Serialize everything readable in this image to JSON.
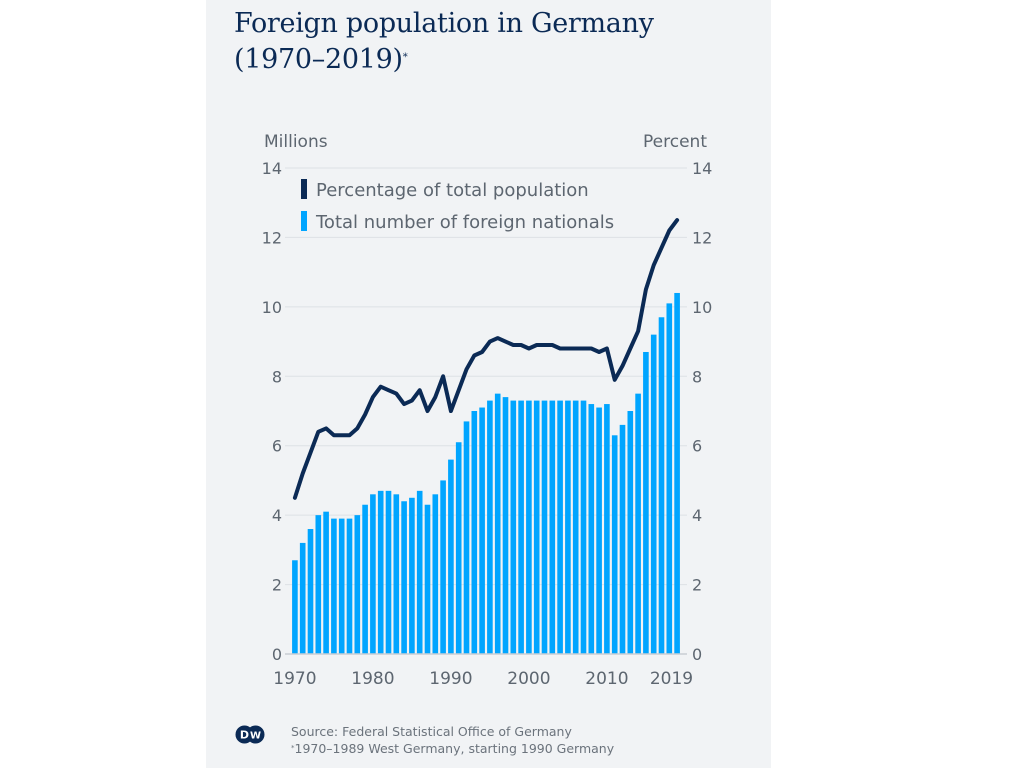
{
  "header": {
    "title_line1": "Foreign population in Germany",
    "title_line2": "(1970–2019)",
    "title_marker": "*"
  },
  "footer": {
    "logo": "dw-logo",
    "source": "Source: Federal Statistical Office of Germany",
    "note_marker": "*",
    "note": "1970–1989 West Germany, starting 1990 Germany"
  },
  "colors": {
    "line": "#0b2a55",
    "bars": "#00a5ff",
    "grid": "#dde1e5",
    "text": "#5d6670",
    "background": "#f1f3f5"
  },
  "chart_data": {
    "type": "bar",
    "title": "Foreign population in Germany (1970–2019)*",
    "ylabel_left": "Millions",
    "ylabel_right": "Percent",
    "ylim": [
      0,
      14
    ],
    "yticks": [
      0,
      2,
      4,
      6,
      8,
      10,
      12,
      14
    ],
    "xtick_labels": [
      "1970",
      "1980",
      "1990",
      "2000",
      "2010",
      "2019"
    ],
    "grid": true,
    "legend_position": "top-left",
    "x": [
      1970,
      1971,
      1972,
      1973,
      1974,
      1975,
      1976,
      1977,
      1978,
      1979,
      1980,
      1981,
      1982,
      1983,
      1984,
      1985,
      1986,
      1987,
      1988,
      1989,
      1990,
      1991,
      1992,
      1993,
      1994,
      1995,
      1996,
      1997,
      1998,
      1999,
      2000,
      2001,
      2002,
      2003,
      2004,
      2005,
      2006,
      2007,
      2008,
      2009,
      2010,
      2011,
      2012,
      2013,
      2014,
      2015,
      2016,
      2017,
      2018,
      2019
    ],
    "series": [
      {
        "name": "Percentage of total population",
        "type": "line",
        "axis": "right",
        "unit": "percent",
        "values": [
          4.5,
          5.2,
          5.8,
          6.4,
          6.5,
          6.3,
          6.3,
          6.3,
          6.5,
          6.9,
          7.4,
          7.7,
          7.6,
          7.5,
          7.2,
          7.3,
          7.6,
          7.0,
          7.4,
          8.0,
          7.0,
          7.6,
          8.2,
          8.6,
          8.7,
          9.0,
          9.1,
          9.0,
          8.9,
          8.9,
          8.8,
          8.9,
          8.9,
          8.9,
          8.8,
          8.8,
          8.8,
          8.8,
          8.8,
          8.7,
          8.8,
          7.9,
          8.3,
          8.8,
          9.3,
          10.5,
          11.2,
          11.7,
          12.2,
          12.5
        ]
      },
      {
        "name": "Total number of foreign nationals",
        "type": "bar",
        "axis": "left",
        "unit": "millions",
        "values": [
          2.7,
          3.2,
          3.6,
          4.0,
          4.1,
          3.9,
          3.9,
          3.9,
          4.0,
          4.3,
          4.6,
          4.7,
          4.7,
          4.6,
          4.4,
          4.5,
          4.7,
          4.3,
          4.6,
          5.0,
          5.6,
          6.1,
          6.7,
          7.0,
          7.1,
          7.3,
          7.5,
          7.4,
          7.3,
          7.3,
          7.3,
          7.3,
          7.3,
          7.3,
          7.3,
          7.3,
          7.3,
          7.3,
          7.2,
          7.1,
          7.2,
          6.3,
          6.6,
          7.0,
          7.5,
          8.7,
          9.2,
          9.7,
          10.1,
          10.4
        ]
      }
    ]
  }
}
